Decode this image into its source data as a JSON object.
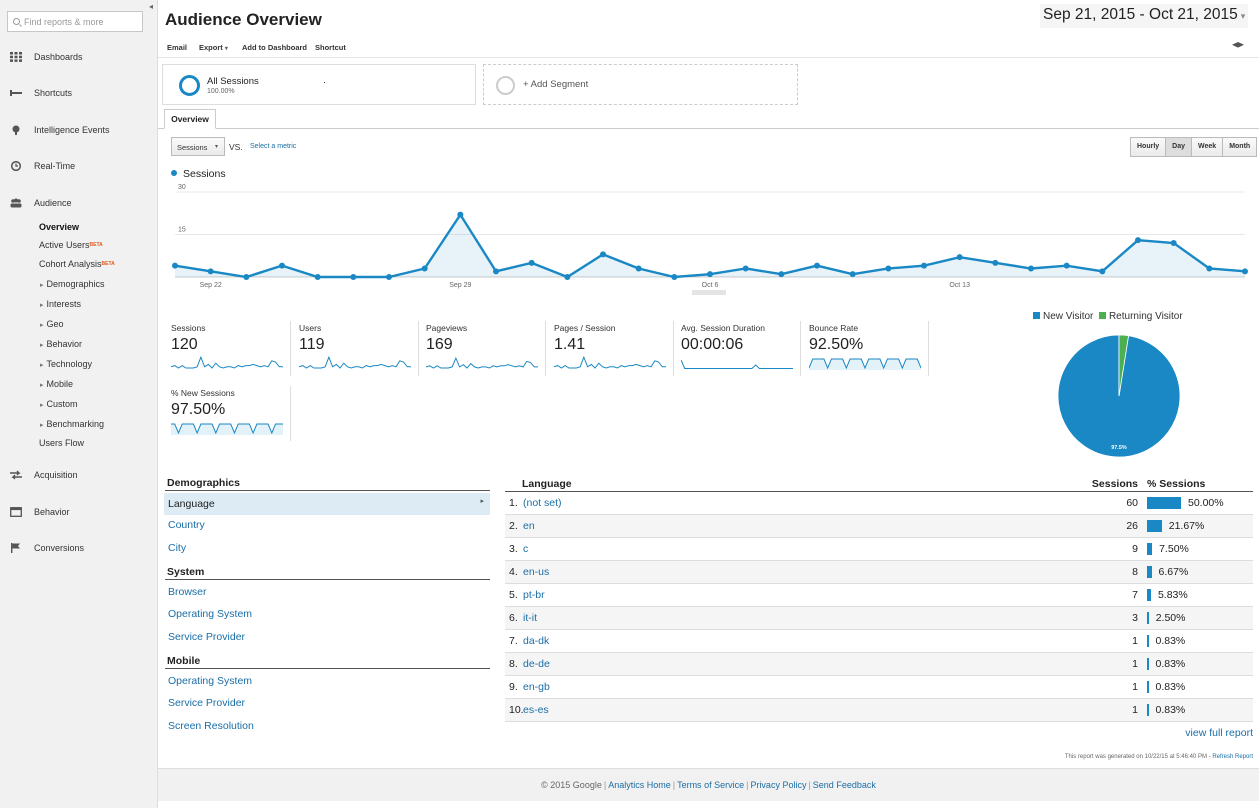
{
  "sidebar": {
    "search_placeholder": "Find reports & more",
    "nav": [
      {
        "label": "Dashboards",
        "icon": "grid-icon"
      },
      {
        "label": "Shortcuts",
        "icon": "shortcut-icon"
      },
      {
        "label": "Intelligence Events",
        "icon": "lightbulb-icon"
      },
      {
        "label": "Real-Time",
        "icon": "clock-icon"
      },
      {
        "label": "Audience",
        "icon": "people-icon"
      },
      {
        "label": "Acquisition",
        "icon": "arrows-icon"
      },
      {
        "label": "Behavior",
        "icon": "window-icon"
      },
      {
        "label": "Conversions",
        "icon": "flag-icon"
      }
    ],
    "audience_items": [
      "Overview",
      "Active Users",
      "Cohort Analysis",
      "Demographics",
      "Interests",
      "Geo",
      "Behavior",
      "Technology",
      "Mobile",
      "Custom",
      "Benchmarking",
      "Users Flow"
    ],
    "beta": "BETA"
  },
  "header": {
    "title": "Audience Overview",
    "date_start": "Sep 21, 2015",
    "date_sep": " - ",
    "date_end": "Oct 21, 2015",
    "toolbar": [
      "Email",
      "Export",
      "Add to Dashboard",
      "Shortcut"
    ]
  },
  "segments": {
    "main_name": "All Sessions",
    "main_pct": "100.00%",
    "main_dot": "·",
    "add_label": "+ Add Segment"
  },
  "tabs": {
    "overview": "Overview"
  },
  "controls": {
    "metric": "Sessions",
    "vs": "VS.",
    "select_metric": "Select a metric",
    "intervals": [
      "Hourly",
      "Day",
      "Week",
      "Month"
    ],
    "active_interval": "Day"
  },
  "chart_data": {
    "type": "area",
    "series": [
      {
        "name": "Sessions",
        "values": [
          4,
          2,
          0,
          4,
          0,
          0,
          0,
          3,
          22,
          2,
          5,
          0,
          8,
          3,
          0,
          1,
          3,
          1,
          4,
          1,
          3,
          4,
          7,
          5,
          3,
          4,
          2,
          13,
          12,
          3,
          2
        ]
      }
    ],
    "x": [
      "Sep 21",
      "Sep 22",
      "Sep 23",
      "Sep 24",
      "Sep 25",
      "Sep 26",
      "Sep 27",
      "Sep 28",
      "Sep 29",
      "Sep 30",
      "Oct 1",
      "Oct 2",
      "Oct 3",
      "Oct 4",
      "Oct 5",
      "Oct 6",
      "Oct 7",
      "Oct 8",
      "Oct 9",
      "Oct 10",
      "Oct 11",
      "Oct 12",
      "Oct 13",
      "Oct 14",
      "Oct 15",
      "Oct 16",
      "Oct 17",
      "Oct 18",
      "Oct 19",
      "Oct 20",
      "Oct 21"
    ],
    "x_tick_labels": [
      "Sep 22",
      "Sep 29",
      "Oct 6",
      "Oct 13"
    ],
    "y_ticks": [
      "30",
      "15"
    ],
    "ylim": [
      0,
      30
    ],
    "color": "#1a88c4"
  },
  "metrics": [
    {
      "label": "Sessions",
      "value": "120"
    },
    {
      "label": "Users",
      "value": "119"
    },
    {
      "label": "Pageviews",
      "value": "169"
    },
    {
      "label": "Pages / Session",
      "value": "1.41"
    },
    {
      "label": "Avg. Session Duration",
      "value": "00:00:06"
    },
    {
      "label": "Bounce Rate",
      "value": "92.50%"
    },
    {
      "label": "% New Sessions",
      "value": "97.50%"
    }
  ],
  "pie": {
    "legend": [
      "New Visitor",
      "Returning Visitor"
    ],
    "values": [
      97.5,
      2.5
    ],
    "colors": [
      "#1a88c4",
      "#4caf50"
    ],
    "label": "97.5%"
  },
  "demographics": {
    "title": "Demographics",
    "language": "Language",
    "items1": [
      "Country",
      "City"
    ],
    "system_title": "System",
    "system_items": [
      "Browser",
      "Operating System",
      "Service Provider"
    ],
    "mobile_title": "Mobile",
    "mobile_items": [
      "Operating System",
      "Service Provider",
      "Screen Resolution"
    ]
  },
  "lang_table": {
    "headers": [
      "Language",
      "Sessions",
      "% Sessions"
    ],
    "rows": [
      {
        "rank": "1.",
        "name": "(not set)",
        "sessions": "60",
        "pct": "50.00%",
        "frac": 0.5
      },
      {
        "rank": "2.",
        "name": "en",
        "sessions": "26",
        "pct": "21.67%",
        "frac": 0.2167
      },
      {
        "rank": "3.",
        "name": "c",
        "sessions": "9",
        "pct": "7.50%",
        "frac": 0.075
      },
      {
        "rank": "4.",
        "name": "en-us",
        "sessions": "8",
        "pct": "6.67%",
        "frac": 0.0667
      },
      {
        "rank": "5.",
        "name": "pt-br",
        "sessions": "7",
        "pct": "5.83%",
        "frac": 0.0583
      },
      {
        "rank": "6.",
        "name": "it-it",
        "sessions": "3",
        "pct": "2.50%",
        "frac": 0.025
      },
      {
        "rank": "7.",
        "name": "da-dk",
        "sessions": "1",
        "pct": "0.83%",
        "frac": 0.0083
      },
      {
        "rank": "8.",
        "name": "de-de",
        "sessions": "1",
        "pct": "0.83%",
        "frac": 0.0083
      },
      {
        "rank": "9.",
        "name": "en-gb",
        "sessions": "1",
        "pct": "0.83%",
        "frac": 0.0083
      },
      {
        "rank": "10.",
        "name": "es-es",
        "sessions": "1",
        "pct": "0.83%",
        "frac": 0.0083
      }
    ],
    "view_full": "view full report",
    "generated_note": "This report was generated on 10/22/15 at 5:46:40 PM - ",
    "refresh": "Refresh Report"
  },
  "footer": {
    "copyright": "© 2015 Google",
    "links": [
      "Analytics Home",
      "Terms of Service",
      "Privacy Policy",
      "Send Feedback"
    ]
  }
}
